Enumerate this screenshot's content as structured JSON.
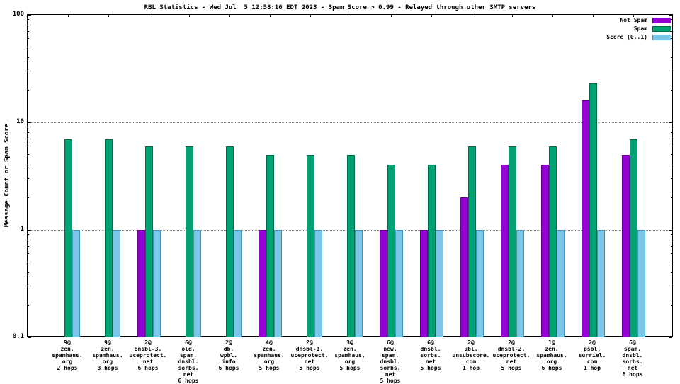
{
  "title": "RBL Statistics - Wed Jul  5 12:58:16 EDT 2023 - Spam Score > 0.99 - Relayed through other SMTP servers",
  "y_axis_label": "Message Count or Spam Score",
  "y_ticks": [
    {
      "label": "100",
      "value": 100
    },
    {
      "label": "10",
      "value": 10
    },
    {
      "label": "1",
      "value": 1
    },
    {
      "label": "0.1",
      "value": 0.1
    }
  ],
  "chart_data": {
    "type": "bar",
    "scale": "log",
    "ylim": [
      0.1,
      100
    ],
    "grid": "horizontal-dotted",
    "gridlines": [
      1,
      10
    ],
    "legend_position": "top-right-inside",
    "categories": [
      "9@\nzen.\nspamhaus.\norg\n2 hops",
      "9@\nzen.\nspamhaus.\norg\n3 hops",
      "2@\ndnsbl-3.\nuceprotect.\nnet\n6 hops",
      "6@\nold.\nspam.\ndnsbl.\nsorbs.\nnet\n6 hops",
      "2@\ndb.\nwpbl.\ninfo\n6 hops",
      "4@\nzen.\nspamhaus.\norg\n5 hops",
      "2@\ndnsbl-1.\nuceprotect.\nnet\n5 hops",
      "3@\nzen.\nspamhaus.\norg\n5 hops",
      "6@\nnew.\nspam.\ndnsbl.\nsorbs.\nnet\n5 hops",
      "6@\ndnsbl.\nsorbs.\nnet\n5 hops",
      "2@\nubl.\nunsubscore.\ncom\n1 hop",
      "2@\ndnsbl-2.\nuceprotect.\nnet\n5 hops",
      "1@\nzen.\nspamhaus.\norg\n6 hops",
      "2@\npsbl.\nsurriel.\ncom\n1 hop",
      "6@\nspam.\ndnsbl.\nsorbs.\nnet\n6 hops"
    ],
    "series": [
      {
        "name": "Not Spam",
        "key": "not-spam",
        "color": "#9400d3",
        "border": "#65008f",
        "values": [
          0,
          0,
          1,
          0,
          0,
          1,
          0,
          0,
          1,
          1,
          2,
          4,
          4,
          16,
          5
        ]
      },
      {
        "name": "Spam",
        "key": "spam",
        "color": "#00a274",
        "border": "#006b4c",
        "values": [
          7,
          7,
          6,
          6,
          6,
          5,
          5,
          5,
          4,
          4,
          6,
          6,
          6,
          23,
          7
        ]
      },
      {
        "name": "Score (0..1)",
        "key": "score",
        "color": "#7cc7e8",
        "border": "#3e95bd",
        "values": [
          1,
          1,
          1,
          1,
          1,
          1,
          1,
          1,
          1,
          1,
          1,
          1,
          1,
          1,
          1
        ]
      }
    ]
  }
}
